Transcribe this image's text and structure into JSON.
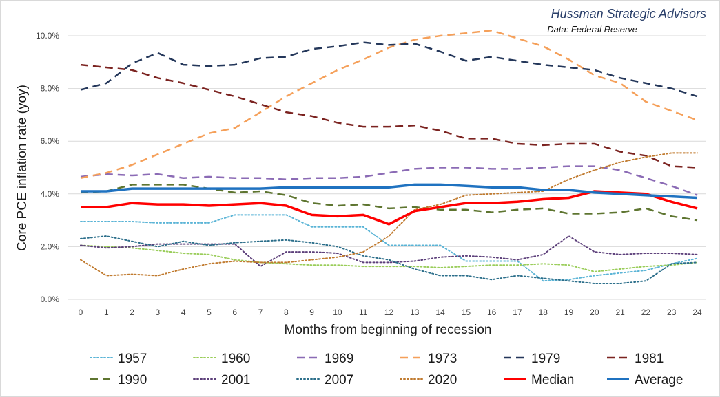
{
  "chart_data": {
    "type": "line",
    "title": "",
    "brand": "Hussman Strategic Advisors",
    "source": "Data: Federal Reserve",
    "xlabel": "Months from beginning of recession",
    "ylabel": "Core PCE inflation rate (yoy)",
    "ylim": [
      0,
      10
    ],
    "yticks": [
      "0.0%",
      "2.0%",
      "4.0%",
      "6.0%",
      "8.0%",
      "10.0%"
    ],
    "ytick_values": [
      0,
      2,
      4,
      6,
      8,
      10
    ],
    "x": [
      0,
      1,
      2,
      3,
      4,
      5,
      6,
      7,
      8,
      9,
      10,
      11,
      12,
      13,
      14,
      15,
      16,
      17,
      18,
      19,
      20,
      21,
      22,
      23,
      24
    ],
    "grid": "horizontal",
    "legend_position": "bottom",
    "series": [
      {
        "name": "1957",
        "color": "#5ab4d6",
        "dash": "dot",
        "width": 2,
        "values": [
          2.95,
          2.95,
          2.95,
          2.9,
          2.9,
          2.9,
          3.2,
          3.2,
          3.2,
          2.75,
          2.75,
          2.75,
          2.05,
          2.05,
          2.05,
          1.45,
          1.45,
          1.45,
          0.7,
          0.75,
          0.9,
          1.0,
          1.1,
          1.35,
          1.55
        ]
      },
      {
        "name": "1960",
        "color": "#9acd5a",
        "dash": "dot",
        "width": 2,
        "values": [
          2.05,
          2.0,
          1.95,
          1.85,
          1.75,
          1.7,
          1.5,
          1.4,
          1.35,
          1.3,
          1.3,
          1.25,
          1.25,
          1.25,
          1.2,
          1.25,
          1.3,
          1.3,
          1.35,
          1.3,
          1.05,
          1.15,
          1.25,
          1.3,
          1.4
        ]
      },
      {
        "name": "1969",
        "color": "#8b6bb5",
        "dash": "dash",
        "width": 2.5,
        "values": [
          4.65,
          4.75,
          4.7,
          4.75,
          4.6,
          4.65,
          4.6,
          4.6,
          4.55,
          4.6,
          4.6,
          4.65,
          4.8,
          4.95,
          5.0,
          5.0,
          4.95,
          4.95,
          5.0,
          5.05,
          5.05,
          4.9,
          4.6,
          4.3,
          3.95
        ]
      },
      {
        "name": "1973",
        "color": "#f5a05a",
        "dash": "dash",
        "width": 2.5,
        "values": [
          4.6,
          4.8,
          5.1,
          5.5,
          5.9,
          6.3,
          6.5,
          7.1,
          7.7,
          8.2,
          8.7,
          9.1,
          9.55,
          9.85,
          10.0,
          10.1,
          10.2,
          9.9,
          9.6,
          9.1,
          8.5,
          8.2,
          7.5,
          7.15,
          6.8
        ]
      },
      {
        "name": "1979",
        "color": "#24375a",
        "dash": "dash",
        "width": 2.5,
        "values": [
          7.95,
          8.2,
          8.95,
          9.35,
          8.9,
          8.85,
          8.9,
          9.15,
          9.2,
          9.5,
          9.6,
          9.75,
          9.65,
          9.7,
          9.4,
          9.05,
          9.2,
          9.05,
          8.9,
          8.8,
          8.7,
          8.4,
          8.2,
          8.0,
          7.7
        ]
      },
      {
        "name": "1981",
        "color": "#7b2320",
        "dash": "dash",
        "width": 2.5,
        "values": [
          8.9,
          8.8,
          8.7,
          8.4,
          8.2,
          7.95,
          7.7,
          7.4,
          7.1,
          6.95,
          6.7,
          6.55,
          6.55,
          6.6,
          6.4,
          6.1,
          6.1,
          5.9,
          5.85,
          5.9,
          5.9,
          5.6,
          5.45,
          5.05,
          5.0
        ]
      },
      {
        "name": "1990",
        "color": "#5e7530",
        "dash": "dash",
        "width": 2.5,
        "values": [
          4.05,
          4.1,
          4.35,
          4.35,
          4.35,
          4.2,
          4.05,
          4.1,
          3.95,
          3.65,
          3.55,
          3.6,
          3.45,
          3.5,
          3.4,
          3.4,
          3.3,
          3.4,
          3.45,
          3.25,
          3.25,
          3.3,
          3.45,
          3.15,
          3.0
        ]
      },
      {
        "name": "2001",
        "color": "#5c3f7a",
        "dash": "dot",
        "width": 2,
        "values": [
          2.05,
          1.95,
          2.0,
          2.1,
          2.1,
          2.1,
          2.1,
          1.25,
          1.8,
          1.8,
          1.75,
          1.4,
          1.4,
          1.45,
          1.6,
          1.65,
          1.6,
          1.5,
          1.7,
          2.4,
          1.8,
          1.7,
          1.75,
          1.75,
          1.7
        ]
      },
      {
        "name": "2007",
        "color": "#2b6e8a",
        "dash": "dot",
        "width": 2,
        "values": [
          2.3,
          2.4,
          2.2,
          2.0,
          2.2,
          2.05,
          2.15,
          2.2,
          2.25,
          2.15,
          2.0,
          1.65,
          1.5,
          1.15,
          0.9,
          0.9,
          0.75,
          0.9,
          0.8,
          0.7,
          0.6,
          0.6,
          0.7,
          1.35,
          1.4
        ]
      },
      {
        "name": "2020",
        "color": "#c07a2e",
        "dash": "dot",
        "width": 2,
        "values": [
          1.5,
          0.9,
          0.95,
          0.9,
          1.15,
          1.35,
          1.45,
          1.4,
          1.4,
          1.5,
          1.6,
          1.8,
          2.4,
          3.4,
          3.6,
          3.95,
          4.0,
          4.05,
          4.1,
          4.55,
          4.9,
          5.2,
          5.4,
          5.55,
          5.55
        ]
      },
      {
        "name": "Median",
        "color": "#ff0000",
        "dash": "solid",
        "width": 3.5,
        "values": [
          3.5,
          3.5,
          3.65,
          3.6,
          3.6,
          3.55,
          3.6,
          3.65,
          3.55,
          3.2,
          3.15,
          3.2,
          2.85,
          3.35,
          3.5,
          3.65,
          3.65,
          3.7,
          3.8,
          3.85,
          4.1,
          4.05,
          4.0,
          3.7,
          3.45
        ]
      },
      {
        "name": "Average",
        "color": "#1f72c0",
        "dash": "solid",
        "width": 3.5,
        "values": [
          4.1,
          4.1,
          4.2,
          4.2,
          4.2,
          4.2,
          4.2,
          4.2,
          4.25,
          4.25,
          4.25,
          4.25,
          4.25,
          4.35,
          4.35,
          4.3,
          4.25,
          4.25,
          4.15,
          4.15,
          4.05,
          4.0,
          3.95,
          3.9,
          3.85
        ]
      }
    ]
  }
}
